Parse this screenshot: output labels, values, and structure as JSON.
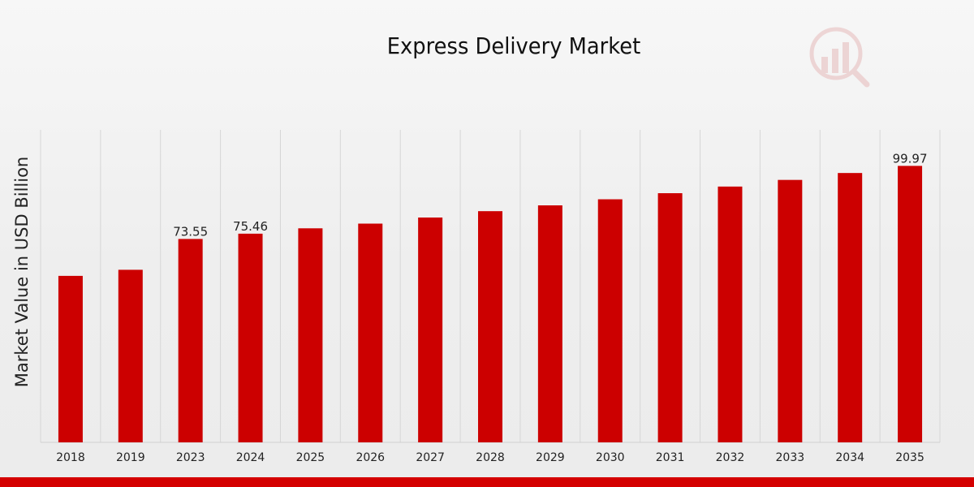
{
  "chart_data": {
    "type": "bar",
    "title": "Express Delivery Market",
    "xlabel": "",
    "ylabel": "Market Value in USD Billion",
    "categories": [
      "2018",
      "2019",
      "2023",
      "2024",
      "2025",
      "2026",
      "2027",
      "2028",
      "2029",
      "2030",
      "2031",
      "2032",
      "2033",
      "2034",
      "2035"
    ],
    "values": [
      60.2,
      62.4,
      73.55,
      75.46,
      77.4,
      79.1,
      81.3,
      83.6,
      85.7,
      87.9,
      90.1,
      92.5,
      94.9,
      97.4,
      99.97
    ],
    "data_labels": [
      {
        "category": "2023",
        "text": "73.55"
      },
      {
        "category": "2024",
        "text": "75.46"
      },
      {
        "category": "2035",
        "text": "99.97"
      }
    ],
    "ylim": [
      0,
      113
    ],
    "grid": "vertical",
    "legend": "none",
    "bar_color": "#cc0000"
  },
  "colors": {
    "bar": "#cc0000",
    "bottom_band": "#d40000",
    "gridline": "#d6d6d6",
    "text": "#111111"
  },
  "logo": {
    "icon": "bar-chart-magnifier-watermark-icon"
  }
}
